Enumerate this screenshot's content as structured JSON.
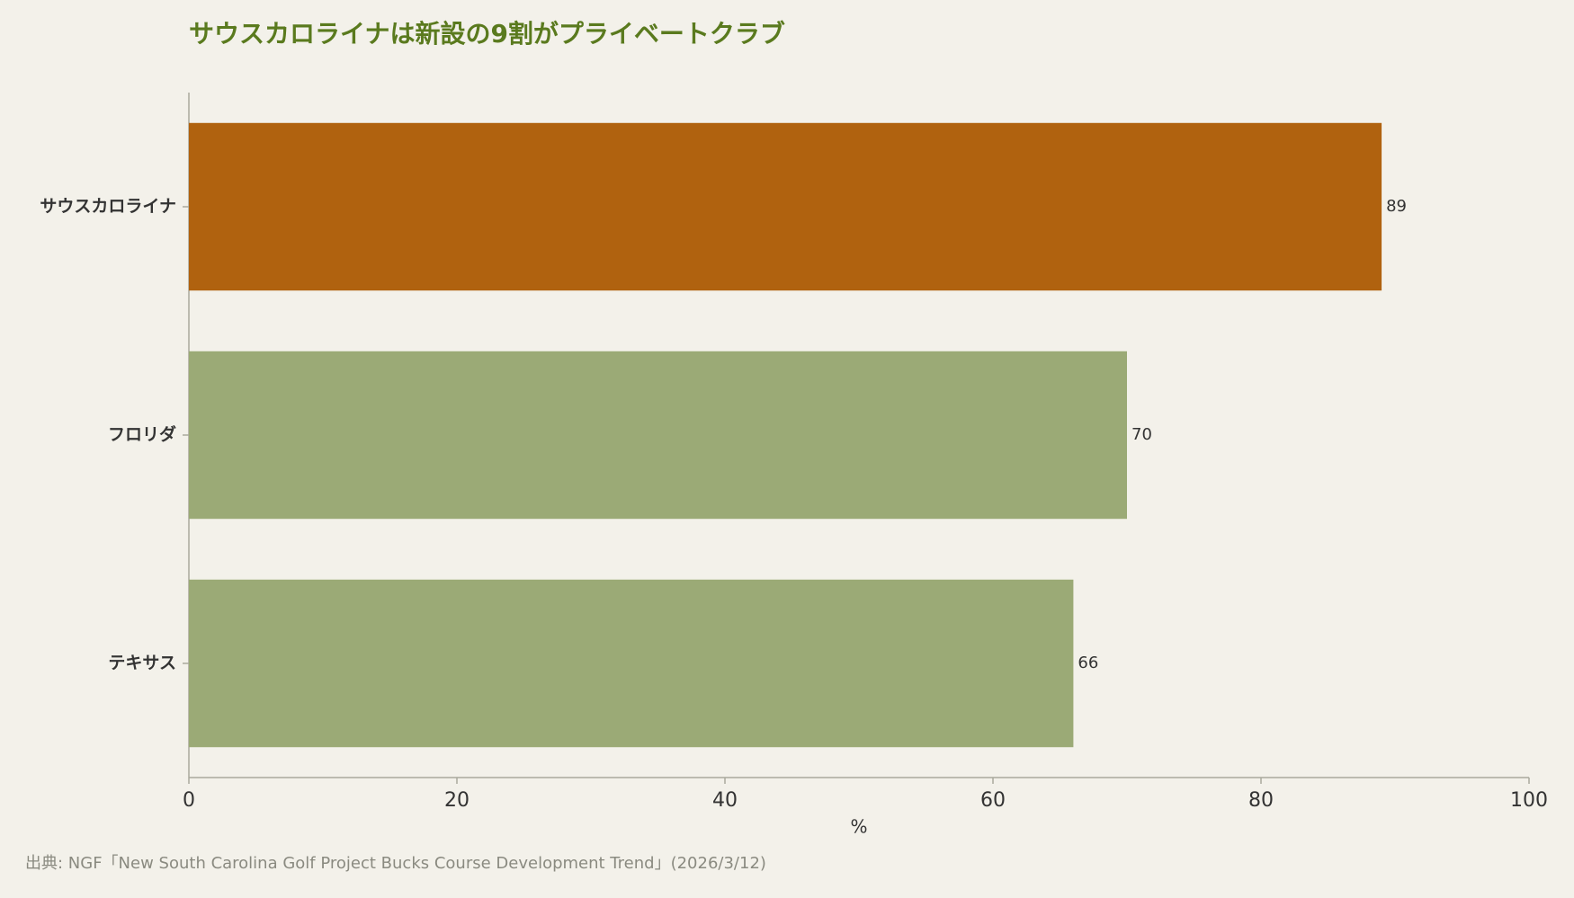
{
  "chart_data": {
    "type": "bar",
    "orientation": "horizontal",
    "title": "サウスカロライナは新設の9割がプライベートクラブ",
    "categories": [
      "サウスカロライナ",
      "フロリダ",
      "テキサス"
    ],
    "values": [
      89,
      70,
      66
    ],
    "colors": [
      "#b0620f",
      "#9baa76",
      "#9baa76"
    ],
    "xlim": [
      0,
      100
    ],
    "xticks": [
      0,
      20,
      40,
      60,
      80,
      100
    ],
    "xlabel": "%",
    "source": "出典: NGF「New South Carolina Golf Project Bucks Course Development Trend」(2026/3/12)",
    "grid": false
  }
}
